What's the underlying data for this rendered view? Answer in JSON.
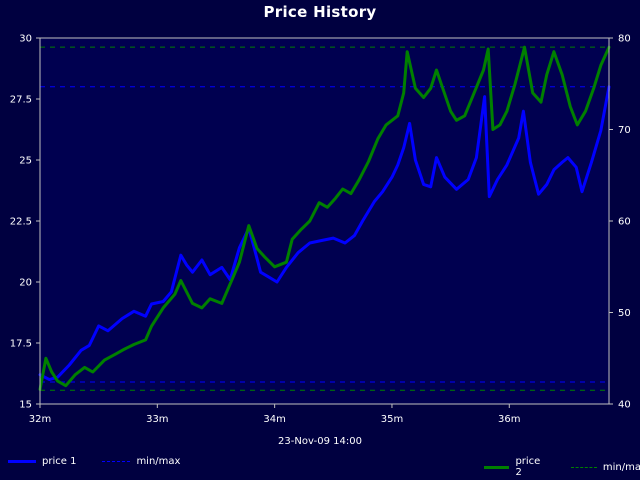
{
  "chart_data": {
    "type": "line",
    "title": "Price History",
    "xlabel": "23-Nov-09 14:00",
    "x_ticks": [
      "32m",
      "33m",
      "34m",
      "35m",
      "36m"
    ],
    "x_domain": [
      32,
      36.85
    ],
    "left_axis": {
      "ylim": [
        15,
        30
      ],
      "ticks": [
        "15",
        "17.5",
        "20",
        "22.5",
        "25",
        "27.5",
        "30"
      ]
    },
    "right_axis": {
      "ylim": [
        40,
        80
      ],
      "ticks": [
        "40",
        "50",
        "60",
        "70",
        "80"
      ]
    },
    "series": [
      {
        "name": "price 1",
        "axis": "left",
        "color": "#0000ff",
        "min": 15.9,
        "max": 28.0,
        "points": [
          [
            32.0,
            16.2
          ],
          [
            32.08,
            16.0
          ],
          [
            32.15,
            16.1
          ],
          [
            32.25,
            16.6
          ],
          [
            32.35,
            17.2
          ],
          [
            32.42,
            17.4
          ],
          [
            32.5,
            18.2
          ],
          [
            32.58,
            18.0
          ],
          [
            32.7,
            18.5
          ],
          [
            32.8,
            18.8
          ],
          [
            32.9,
            18.6
          ],
          [
            32.95,
            19.1
          ],
          [
            33.05,
            19.2
          ],
          [
            33.12,
            19.6
          ],
          [
            33.2,
            21.1
          ],
          [
            33.25,
            20.7
          ],
          [
            33.3,
            20.4
          ],
          [
            33.38,
            20.9
          ],
          [
            33.45,
            20.3
          ],
          [
            33.55,
            20.6
          ],
          [
            33.62,
            20.1
          ],
          [
            33.7,
            21.4
          ],
          [
            33.78,
            22.2
          ],
          [
            33.82,
            21.5
          ],
          [
            33.88,
            20.4
          ],
          [
            33.95,
            20.2
          ],
          [
            34.02,
            20.0
          ],
          [
            34.1,
            20.6
          ],
          [
            34.2,
            21.2
          ],
          [
            34.3,
            21.6
          ],
          [
            34.4,
            21.7
          ],
          [
            34.5,
            21.8
          ],
          [
            34.6,
            21.6
          ],
          [
            34.68,
            21.9
          ],
          [
            34.75,
            22.5
          ],
          [
            34.85,
            23.3
          ],
          [
            34.92,
            23.7
          ],
          [
            35.0,
            24.3
          ],
          [
            35.05,
            24.8
          ],
          [
            35.1,
            25.5
          ],
          [
            35.15,
            26.5
          ],
          [
            35.2,
            25.0
          ],
          [
            35.27,
            24.0
          ],
          [
            35.33,
            23.9
          ],
          [
            35.38,
            25.1
          ],
          [
            35.45,
            24.3
          ],
          [
            35.55,
            23.8
          ],
          [
            35.65,
            24.2
          ],
          [
            35.72,
            25.1
          ],
          [
            35.79,
            27.6
          ],
          [
            35.83,
            23.5
          ],
          [
            35.9,
            24.2
          ],
          [
            35.98,
            24.8
          ],
          [
            36.08,
            25.9
          ],
          [
            36.12,
            27.0
          ],
          [
            36.18,
            24.9
          ],
          [
            36.25,
            23.6
          ],
          [
            36.32,
            24.0
          ],
          [
            36.38,
            24.6
          ],
          [
            36.45,
            24.9
          ],
          [
            36.5,
            25.1
          ],
          [
            36.57,
            24.7
          ],
          [
            36.62,
            23.7
          ],
          [
            36.7,
            24.9
          ],
          [
            36.78,
            26.2
          ],
          [
            36.83,
            27.5
          ],
          [
            36.85,
            28.0
          ]
        ]
      },
      {
        "name": "price 2",
        "axis": "right",
        "color": "#008000",
        "min": 41.5,
        "max": 79.0,
        "points": [
          [
            32.0,
            41.6
          ],
          [
            32.05,
            45.0
          ],
          [
            32.1,
            43.5
          ],
          [
            32.15,
            42.5
          ],
          [
            32.22,
            42.0
          ],
          [
            32.3,
            43.2
          ],
          [
            32.38,
            44.0
          ],
          [
            32.45,
            43.5
          ],
          [
            32.55,
            44.8
          ],
          [
            32.65,
            45.5
          ],
          [
            32.72,
            46.0
          ],
          [
            32.8,
            46.5
          ],
          [
            32.9,
            47.0
          ],
          [
            32.95,
            48.5
          ],
          [
            33.05,
            50.5
          ],
          [
            33.15,
            52.0
          ],
          [
            33.2,
            53.5
          ],
          [
            33.3,
            51.0
          ],
          [
            33.38,
            50.5
          ],
          [
            33.45,
            51.5
          ],
          [
            33.55,
            51.0
          ],
          [
            33.6,
            52.5
          ],
          [
            33.65,
            54.0
          ],
          [
            33.7,
            55.5
          ],
          [
            33.78,
            59.5
          ],
          [
            33.85,
            57.0
          ],
          [
            33.92,
            56.0
          ],
          [
            34.0,
            55.0
          ],
          [
            34.1,
            55.5
          ],
          [
            34.15,
            58.0
          ],
          [
            34.22,
            59.0
          ],
          [
            34.3,
            60.0
          ],
          [
            34.38,
            62.0
          ],
          [
            34.45,
            61.5
          ],
          [
            34.52,
            62.5
          ],
          [
            34.58,
            63.5
          ],
          [
            34.65,
            63.0
          ],
          [
            34.72,
            64.5
          ],
          [
            34.8,
            66.5
          ],
          [
            34.88,
            69.0
          ],
          [
            34.95,
            70.5
          ],
          [
            35.05,
            71.5
          ],
          [
            35.1,
            74.0
          ],
          [
            35.13,
            78.5
          ],
          [
            35.2,
            74.5
          ],
          [
            35.27,
            73.5
          ],
          [
            35.33,
            74.5
          ],
          [
            35.38,
            76.5
          ],
          [
            35.42,
            75.0
          ],
          [
            35.5,
            72.0
          ],
          [
            35.55,
            71.0
          ],
          [
            35.62,
            71.5
          ],
          [
            35.7,
            74.0
          ],
          [
            35.78,
            76.5
          ],
          [
            35.82,
            78.8
          ],
          [
            35.86,
            70.0
          ],
          [
            35.92,
            70.5
          ],
          [
            35.98,
            72.0
          ],
          [
            36.05,
            75.0
          ],
          [
            36.1,
            77.5
          ],
          [
            36.13,
            79.0
          ],
          [
            36.2,
            74.0
          ],
          [
            36.27,
            73.0
          ],
          [
            36.32,
            76.0
          ],
          [
            36.38,
            78.5
          ],
          [
            36.45,
            76.0
          ],
          [
            36.52,
            72.5
          ],
          [
            36.58,
            70.5
          ],
          [
            36.65,
            72.0
          ],
          [
            36.72,
            74.5
          ],
          [
            36.78,
            77.0
          ],
          [
            36.85,
            79.0
          ]
        ]
      }
    ],
    "legend": [
      {
        "label": "price 1",
        "color": "#0000ff",
        "style": "solid"
      },
      {
        "label": "min/max",
        "color": "#0000ff",
        "style": "dashed"
      },
      {
        "label": "price 2",
        "color": "#008000",
        "style": "solid"
      },
      {
        "label": "min/max",
        "color": "#008000",
        "style": "dashed"
      }
    ]
  }
}
